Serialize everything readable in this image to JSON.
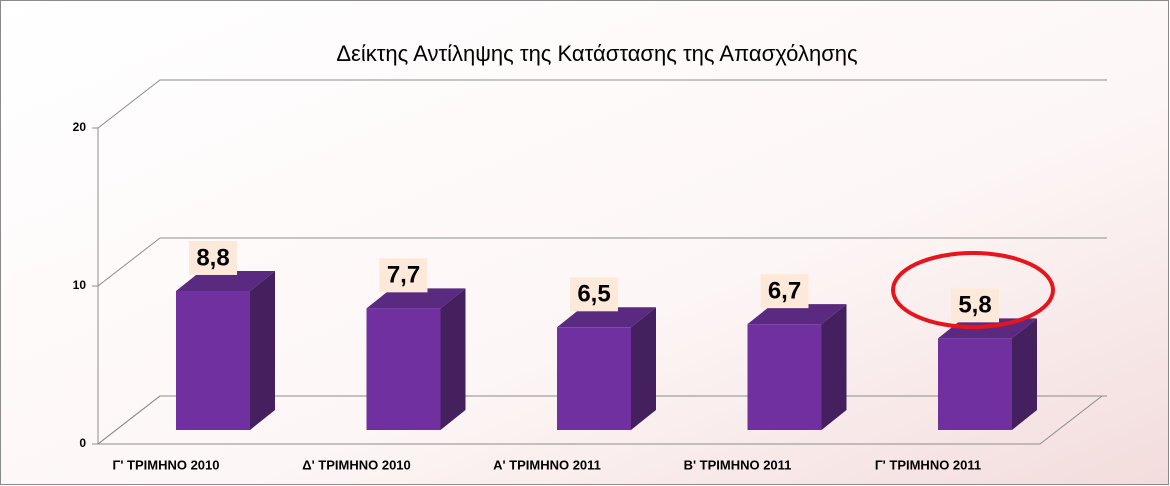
{
  "chart_data": {
    "type": "bar",
    "title": "Δείκτης Αντίληψης της Κατάστασης της Απασχόλησης",
    "categories": [
      "Γ' ΤΡΙΜΗΝΟ 2010",
      "Δ' ΤΡΙΜΗΝΟ 2010",
      "Α' ΤΡΙΜΗΝΟ 2011",
      "Β' ΤΡΙΜΗΝΟ 2011",
      "Γ' ΤΡΙΜΗΝΟ 2011"
    ],
    "values": [
      8.8,
      7.7,
      6.5,
      6.7,
      5.8
    ],
    "value_labels": [
      "8,8",
      "7,7",
      "6,5",
      "6,7",
      "5,8"
    ],
    "color": "#7030a0",
    "ylim": [
      0,
      20
    ],
    "yticks": [
      0,
      10,
      20
    ],
    "grid": true
  }
}
